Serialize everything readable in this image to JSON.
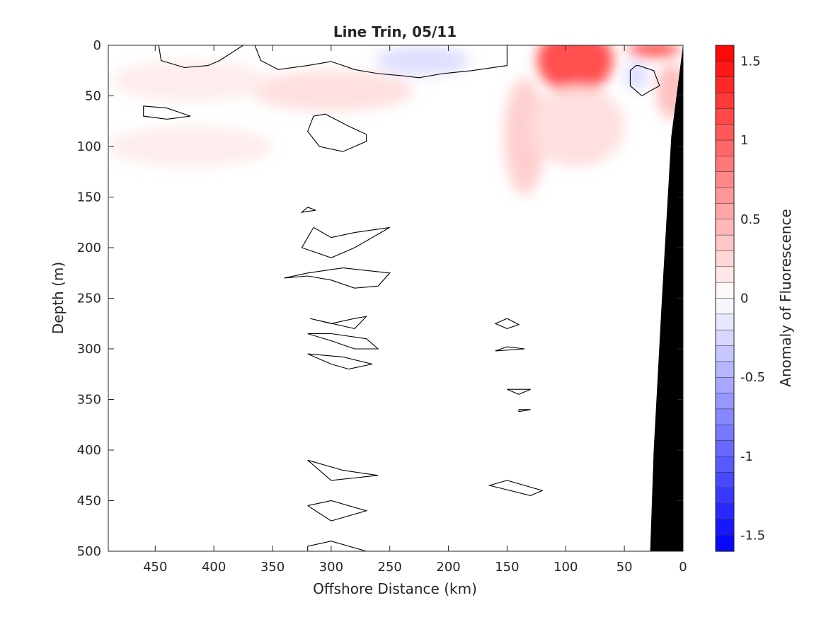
{
  "chart_data": {
    "type": "heatmap",
    "title": "Line Trin, 05/11",
    "xlabel": "Offshore Distance (km)",
    "ylabel": "Depth (m)",
    "colorbar_label": "Anomaly of Fluorescence",
    "x_reversed": true,
    "y_reversed": true,
    "xlim": [
      0,
      490
    ],
    "ylim": [
      0,
      500
    ],
    "x_ticks": [
      450,
      400,
      350,
      300,
      250,
      200,
      150,
      100,
      50,
      0
    ],
    "y_ticks": [
      0,
      50,
      100,
      150,
      200,
      250,
      300,
      350,
      400,
      450,
      500
    ],
    "colorbar_range": [
      -1.6,
      1.6
    ],
    "colorbar_ticks": [
      1.5,
      1,
      0.5,
      0,
      -0.5,
      -1,
      -1.5
    ],
    "colorbar_ticklabels": [
      "1.5",
      "1",
      "0.5",
      "0",
      "-0.5",
      "-1",
      "-1.5"
    ],
    "colormap": {
      "negative": "#0000ff",
      "zero": "#ffffff",
      "positive": "#ff0000"
    },
    "grid": false,
    "positive_anomaly_regions": [
      {
        "x_center": 92,
        "depth_center": 15,
        "x_extent": [
          60,
          125
        ],
        "depth_extent": [
          0,
          65
        ],
        "value": 1.1
      },
      {
        "x_center": 25,
        "depth_center": 4,
        "x_extent": [
          5,
          50
        ],
        "depth_extent": [
          0,
          15
        ],
        "value": 1.1
      },
      {
        "x_center": 135,
        "depth_center": 90,
        "x_extent": [
          115,
          150
        ],
        "depth_extent": [
          40,
          155
        ],
        "value": 0.3
      },
      {
        "x_center": 90,
        "depth_center": 80,
        "x_extent": [
          55,
          135
        ],
        "depth_extent": [
          30,
          110
        ],
        "value": 0.2
      },
      {
        "x_center": 10,
        "depth_center": 45,
        "x_extent": [
          0,
          25
        ],
        "depth_extent": [
          25,
          80
        ],
        "value": 0.4
      },
      {
        "x_center": 300,
        "depth_center": 45,
        "x_extent": [
          230,
          370
        ],
        "depth_extent": [
          25,
          65
        ],
        "value": 0.2
      },
      {
        "x_center": 420,
        "depth_center": 35,
        "x_extent": [
          355,
          490
        ],
        "depth_extent": [
          20,
          60
        ],
        "value": 0.12
      },
      {
        "x_center": 420,
        "depth_center": 100,
        "x_extent": [
          350,
          490
        ],
        "depth_extent": [
          80,
          120
        ],
        "value": 0.12
      }
    ],
    "negative_anomaly_regions": [
      {
        "x_center": 222,
        "depth_center": 15,
        "x_extent": [
          180,
          260
        ],
        "depth_extent": [
          0,
          30
        ],
        "value": -0.2
      },
      {
        "x_center": 40,
        "depth_center": 30,
        "x_extent": [
          30,
          50
        ],
        "depth_extent": [
          15,
          45
        ],
        "value": -0.2
      }
    ],
    "zero_contours": [
      [
        [
          447,
          0
        ],
        [
          445,
          15
        ],
        [
          425,
          22
        ],
        [
          405,
          20
        ],
        [
          395,
          15
        ],
        [
          375,
          0
        ]
      ],
      [
        [
          365,
          0
        ],
        [
          360,
          15
        ],
        [
          345,
          24
        ],
        [
          320,
          20
        ],
        [
          300,
          16
        ],
        [
          280,
          24
        ],
        [
          260,
          28
        ],
        [
          240,
          30
        ],
        [
          225,
          32
        ],
        [
          205,
          28
        ],
        [
          180,
          25
        ],
        [
          150,
          20
        ],
        [
          150,
          0
        ]
      ],
      [
        [
          40,
          20
        ],
        [
          45,
          25
        ],
        [
          45,
          40
        ],
        [
          35,
          50
        ],
        [
          28,
          45
        ],
        [
          20,
          40
        ],
        [
          25,
          25
        ],
        [
          38,
          20
        ],
        [
          40,
          20
        ]
      ],
      [
        [
          460,
          60
        ],
        [
          440,
          62
        ],
        [
          420,
          70
        ],
        [
          440,
          73
        ],
        [
          460,
          70
        ],
        [
          460,
          60
        ]
      ],
      [
        [
          315,
          70
        ],
        [
          320,
          85
        ],
        [
          310,
          100
        ],
        [
          290,
          105
        ],
        [
          270,
          95
        ],
        [
          270,
          88
        ],
        [
          285,
          80
        ],
        [
          305,
          68
        ],
        [
          315,
          70
        ]
      ],
      [
        [
          320,
          160
        ],
        [
          313,
          163
        ],
        [
          325,
          165
        ],
        [
          320,
          160
        ]
      ],
      [
        [
          315,
          180
        ],
        [
          325,
          200
        ],
        [
          300,
          210
        ],
        [
          280,
          200
        ],
        [
          250,
          180
        ],
        [
          280,
          185
        ],
        [
          300,
          190
        ],
        [
          315,
          180
        ]
      ],
      [
        [
          340,
          230
        ],
        [
          320,
          228
        ],
        [
          300,
          232
        ],
        [
          280,
          240
        ],
        [
          260,
          238
        ],
        [
          250,
          225
        ],
        [
          290,
          220
        ],
        [
          320,
          225
        ],
        [
          340,
          230
        ]
      ],
      [
        [
          318,
          270
        ],
        [
          300,
          275
        ],
        [
          280,
          270
        ],
        [
          270,
          268
        ],
        [
          280,
          280
        ],
        [
          318,
          270
        ]
      ],
      [
        [
          320,
          285
        ],
        [
          300,
          292
        ],
        [
          280,
          300
        ],
        [
          260,
          300
        ],
        [
          270,
          290
        ],
        [
          300,
          285
        ],
        [
          320,
          285
        ]
      ],
      [
        [
          320,
          305
        ],
        [
          300,
          315
        ],
        [
          285,
          320
        ],
        [
          265,
          315
        ],
        [
          290,
          308
        ],
        [
          320,
          305
        ]
      ],
      [
        [
          150,
          270
        ],
        [
          160,
          275
        ],
        [
          150,
          280
        ],
        [
          140,
          276
        ],
        [
          150,
          270
        ]
      ],
      [
        [
          150,
          298
        ],
        [
          135,
          300
        ],
        [
          160,
          302
        ],
        [
          150,
          298
        ]
      ],
      [
        [
          150,
          340
        ],
        [
          140,
          345
        ],
        [
          130,
          340
        ],
        [
          150,
          340
        ]
      ],
      [
        [
          140,
          360
        ],
        [
          130,
          360
        ],
        [
          140,
          362
        ],
        [
          140,
          360
        ]
      ],
      [
        [
          320,
          410
        ],
        [
          290,
          420
        ],
        [
          260,
          425
        ],
        [
          300,
          430
        ],
        [
          320,
          410
        ]
      ],
      [
        [
          150,
          430
        ],
        [
          120,
          440
        ],
        [
          130,
          445
        ],
        [
          165,
          435
        ],
        [
          150,
          430
        ]
      ],
      [
        [
          320,
          455
        ],
        [
          300,
          450
        ],
        [
          270,
          460
        ],
        [
          300,
          470
        ],
        [
          320,
          455
        ]
      ],
      [
        [
          320,
          495
        ],
        [
          300,
          490
        ],
        [
          270,
          500
        ],
        [
          320,
          500
        ],
        [
          320,
          495
        ]
      ]
    ],
    "bathymetry": {
      "color": "#000000",
      "profile": [
        [
          0,
          0
        ],
        [
          10,
          90
        ],
        [
          18,
          250
        ],
        [
          25,
          400
        ],
        [
          28,
          500
        ]
      ]
    }
  }
}
